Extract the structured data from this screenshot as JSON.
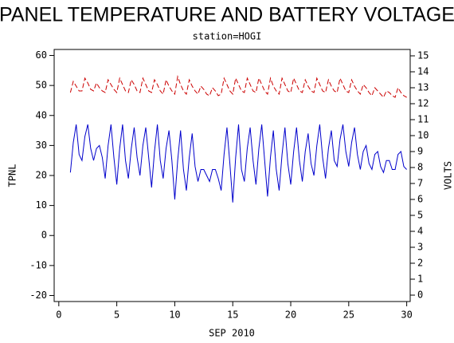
{
  "chart_data": {
    "type": "line",
    "title": "PANEL TEMPERATURE AND BATTERY VOLTAGE",
    "subtitle": "station=HOGI",
    "x_label": "SEP 2010",
    "y_label": "TPNL",
    "y2_label": "VOLTS",
    "xlim": [
      -0.4,
      30.3
    ],
    "xticks": [
      0,
      5,
      10,
      15,
      20,
      25,
      30
    ],
    "ylim": [
      -22,
      62
    ],
    "yticks": [
      -20,
      -10,
      0,
      10,
      20,
      30,
      40,
      50,
      60
    ],
    "y2lim": [
      -0.4,
      15.4
    ],
    "y2ticks": [
      0,
      1,
      2,
      3,
      4,
      5,
      6,
      7,
      8,
      9,
      10,
      11,
      12,
      13,
      14,
      15
    ],
    "x": [
      1,
      1.25,
      1.5,
      1.75,
      2,
      2.25,
      2.5,
      2.75,
      3,
      3.25,
      3.5,
      3.75,
      4,
      4.25,
      4.5,
      4.75,
      5,
      5.25,
      5.5,
      5.75,
      6,
      6.25,
      6.5,
      6.75,
      7,
      7.25,
      7.5,
      7.75,
      8,
      8.25,
      8.5,
      8.75,
      9,
      9.25,
      9.5,
      9.75,
      10,
      10.25,
      10.5,
      10.75,
      11,
      11.25,
      11.5,
      11.75,
      12,
      12.25,
      12.5,
      12.75,
      13,
      13.25,
      13.5,
      13.75,
      14,
      14.25,
      14.5,
      14.75,
      15,
      15.25,
      15.5,
      15.75,
      16,
      16.25,
      16.5,
      16.75,
      17,
      17.25,
      17.5,
      17.75,
      18,
      18.25,
      18.5,
      18.75,
      19,
      19.25,
      19.5,
      19.75,
      20,
      20.25,
      20.5,
      20.75,
      21,
      21.25,
      21.5,
      21.75,
      22,
      22.25,
      22.5,
      22.75,
      23,
      23.25,
      23.5,
      23.75,
      24,
      24.25,
      24.5,
      24.75,
      25,
      25.25,
      25.5,
      25.75,
      26,
      26.25,
      26.5,
      26.75,
      27,
      27.25,
      27.5,
      27.75,
      28,
      28.25,
      28.5,
      28.75,
      29,
      29.25,
      29.5,
      29.75,
      30
    ],
    "series": [
      {
        "name": "TPNL",
        "color": "#0000cc",
        "axis": "y",
        "values": [
          21,
          31,
          37,
          27,
          25,
          33,
          37,
          29,
          25,
          29,
          30,
          26,
          19,
          30,
          37,
          26,
          17,
          29,
          37,
          25,
          19,
          29,
          36,
          26,
          20,
          30,
          36,
          26,
          16,
          28,
          37,
          25,
          19,
          29,
          35,
          25,
          12,
          25,
          35,
          22,
          15,
          26,
          34,
          23,
          18,
          22,
          22,
          20,
          18,
          22,
          22,
          19,
          15,
          27,
          36,
          24,
          11,
          26,
          37,
          22,
          18,
          29,
          36,
          25,
          17,
          29,
          37,
          25,
          13,
          26,
          35,
          22,
          15,
          27,
          36,
          24,
          17,
          28,
          36,
          25,
          18,
          28,
          34,
          24,
          20,
          30,
          37,
          26,
          19,
          29,
          35,
          25,
          23,
          32,
          37,
          28,
          23,
          31,
          36,
          27,
          22,
          28,
          30,
          24,
          22,
          27,
          28,
          23,
          21,
          25,
          25,
          22,
          22,
          27,
          28,
          23,
          22
        ]
      },
      {
        "name": "VOLTS",
        "color": "#cc0000",
        "axis": "y2",
        "line_style": "dashed",
        "values": [
          12.7,
          13.4,
          13.1,
          12.8,
          12.8,
          13.6,
          13.3,
          12.9,
          12.8,
          13.3,
          13.0,
          12.8,
          12.7,
          13.5,
          13.2,
          12.9,
          12.7,
          13.6,
          13.2,
          12.8,
          12.7,
          13.5,
          13.2,
          12.8,
          12.7,
          13.6,
          13.2,
          12.8,
          12.7,
          13.5,
          13.2,
          12.8,
          12.6,
          13.5,
          13.1,
          12.8,
          12.6,
          13.7,
          13.2,
          12.8,
          12.6,
          13.5,
          13.1,
          12.8,
          12.6,
          13.1,
          12.9,
          12.6,
          12.5,
          13.0,
          12.8,
          12.5,
          12.6,
          13.6,
          13.2,
          12.8,
          12.6,
          13.6,
          13.2,
          12.8,
          12.7,
          13.6,
          13.2,
          12.8,
          12.7,
          13.6,
          13.2,
          12.8,
          12.6,
          13.6,
          13.1,
          12.8,
          12.6,
          13.6,
          13.2,
          12.8,
          12.7,
          13.6,
          13.2,
          12.8,
          12.7,
          13.5,
          13.1,
          12.8,
          12.7,
          13.6,
          13.2,
          12.8,
          12.7,
          13.5,
          13.1,
          12.8,
          12.7,
          13.6,
          13.2,
          12.8,
          12.7,
          13.5,
          13.1,
          12.8,
          12.6,
          13.2,
          13.0,
          12.7,
          12.5,
          13.0,
          12.8,
          12.6,
          12.4,
          12.8,
          12.7,
          12.5,
          12.4,
          13.0,
          12.7,
          12.5,
          12.4
        ]
      }
    ]
  }
}
